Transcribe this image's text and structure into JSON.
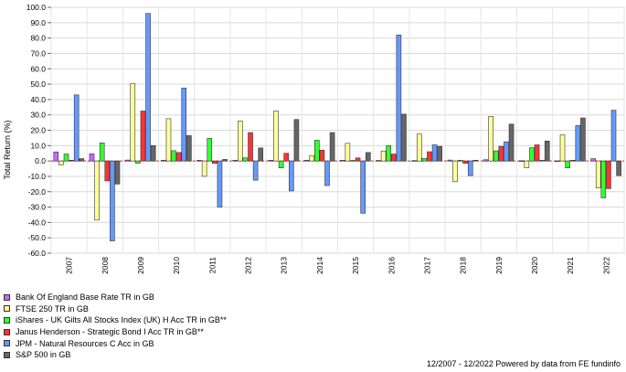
{
  "chart_data": {
    "type": "bar",
    "ylabel": "Total Return (%)",
    "ylim": [
      -60,
      100
    ],
    "ytick_step": 10,
    "grid": true,
    "legend_position": "bottom-left",
    "categories": [
      "2007",
      "2008",
      "2009",
      "2010",
      "2011",
      "2012",
      "2013",
      "2014",
      "2015",
      "2016",
      "2017",
      "2018",
      "2019",
      "2020",
      "2021",
      "2022"
    ],
    "series": [
      {
        "name": "Bank Of England Base Rate TR in GB",
        "color": "#cc66ff",
        "values": [
          5.9,
          4.7,
          0.6,
          0.5,
          0.5,
          0.5,
          0.5,
          0.5,
          0.5,
          0.4,
          0.3,
          0.6,
          0.8,
          0.2,
          0.1,
          1.5
        ]
      },
      {
        "name": "FTSE 250 TR in GB",
        "color": "#ffff99",
        "values": [
          -2.5,
          -38.5,
          50.5,
          27.5,
          -10.0,
          26.0,
          32.5,
          3.5,
          11.5,
          6.5,
          17.5,
          -13.5,
          29.0,
          -4.5,
          17.0,
          -17.5
        ]
      },
      {
        "name": "iShares - UK Gilts All Stocks Index (UK) H Acc TR in GB**",
        "color": "#33ff33",
        "values": [
          4.5,
          11.8,
          -1.5,
          6.7,
          14.7,
          2.0,
          -4.5,
          13.5,
          0.4,
          10.0,
          1.7,
          0.5,
          6.6,
          8.6,
          -4.5,
          -24.0
        ]
      },
      {
        "name": "Janus Henderson - Strategic Bond I Acc TR in GB**",
        "color": "#ff3333",
        "values": [
          0.5,
          -13.0,
          32.5,
          5.5,
          -1.5,
          18.5,
          5.0,
          7.0,
          2.0,
          4.5,
          6.0,
          -1.5,
          9.5,
          10.5,
          0.5,
          -18.0
        ]
      },
      {
        "name": "JPM - Natural Resources C Acc in GB",
        "color": "#6699ff",
        "values": [
          43.0,
          -52.0,
          96.0,
          47.5,
          -30.0,
          -12.5,
          -19.5,
          -16.0,
          -34.0,
          82.0,
          10.5,
          -9.5,
          12.5,
          0.5,
          23.0,
          33.0
        ]
      },
      {
        "name": "S&P 500 in GB",
        "color": "#666666",
        "values": [
          1.5,
          -15.0,
          10.0,
          16.5,
          1.0,
          8.5,
          27.0,
          18.5,
          5.5,
          30.5,
          9.5,
          0.5,
          24.0,
          13.0,
          28.0,
          -9.5
        ]
      }
    ]
  },
  "footer": "12/2007 - 12/2022 Powered by data from FE fundinfo"
}
